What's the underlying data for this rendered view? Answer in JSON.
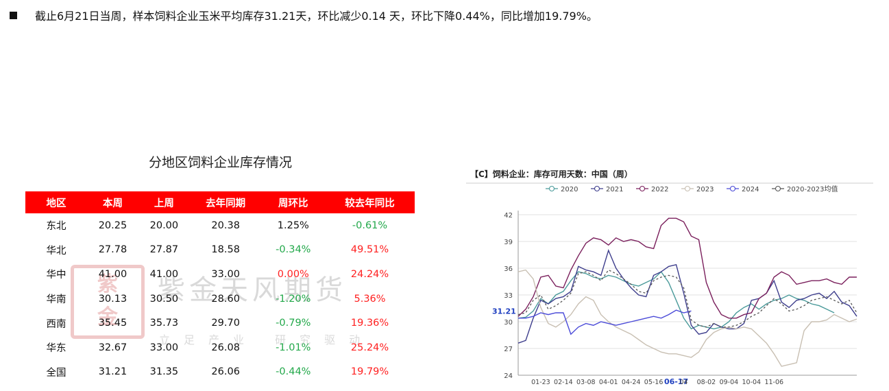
{
  "headline": "截止6月21日当周，样本饲料企业玉米平均库存31.21天，环比减少0.14 天，环比下降0.44%，同比增加19.79%。",
  "table": {
    "title": "分地区饲料企业库存情况",
    "headers": [
      "地区",
      "本周",
      "上周",
      "去年同期",
      "周环比",
      "较去年同比"
    ],
    "rows": [
      {
        "region": "东北",
        "this_week": "20.25",
        "last_week": "20.00",
        "last_year": "20.38",
        "wow": "1.25%",
        "wow_sign": "neu",
        "yoy": "-0.61%",
        "yoy_sign": "neg"
      },
      {
        "region": "华北",
        "this_week": "27.78",
        "last_week": "27.87",
        "last_year": "18.58",
        "wow": "-0.34%",
        "wow_sign": "neg",
        "yoy": "49.51%",
        "yoy_sign": "pos"
      },
      {
        "region": "华中",
        "this_week": "41.00",
        "last_week": "41.00",
        "last_year": "33.00",
        "wow": "0.00%",
        "wow_sign": "pos",
        "yoy": "24.24%",
        "yoy_sign": "pos"
      },
      {
        "region": "华南",
        "this_week": "30.13",
        "last_week": "30.50",
        "last_year": "28.60",
        "wow": "-1.20%",
        "wow_sign": "neg",
        "yoy": "5.36%",
        "yoy_sign": "pos"
      },
      {
        "region": "西南",
        "this_week": "35.45",
        "last_week": "35.73",
        "last_year": "29.70",
        "wow": "-0.79%",
        "wow_sign": "neg",
        "yoy": "19.36%",
        "yoy_sign": "pos"
      },
      {
        "region": "华东",
        "this_week": "32.67",
        "last_week": "33.00",
        "last_year": "26.08",
        "wow": "-1.01%",
        "wow_sign": "neg",
        "yoy": "25.24%",
        "yoy_sign": "pos"
      },
      {
        "region": "全国",
        "this_week": "31.21",
        "last_week": "31.35",
        "last_year": "26.06",
        "wow": "-0.44%",
        "wow_sign": "neg",
        "yoy": "19.79%",
        "yoy_sign": "pos"
      }
    ]
  },
  "watermark": {
    "seal": "紫金",
    "name": "紫金天风期货",
    "slogan": "立足产业 研究驱动"
  },
  "chart_data": {
    "type": "line",
    "title": "【C】饲料企业：库存可用天数：中国（周）",
    "ylim": [
      24,
      42
    ],
    "yticks": [
      24,
      27,
      30,
      33,
      36,
      39,
      42
    ],
    "x_tick_labels": [
      "01-23",
      "02-14",
      "03-08",
      "04-01",
      "04-24",
      "05-16",
      "06-17",
      "04",
      "08-02",
      "09-04",
      "10-04",
      "11-06"
    ],
    "x_tick_weeks": [
      3,
      6,
      9,
      12,
      15,
      18,
      21,
      22,
      25,
      28,
      31,
      34
    ],
    "highlight_tick": "06-17",
    "current_label": "31.21",
    "current_value": 31.21,
    "grid": true,
    "legend_position": "top",
    "series": [
      {
        "name": "2020",
        "color": "#4a9a9a",
        "dash": "",
        "values": [
          30.4,
          30.5,
          31.2,
          32.6,
          32.0,
          33.0,
          33.4,
          34.6,
          35.6,
          35.4,
          35.0,
          34.8,
          35.2,
          35.0,
          34.6,
          34.2,
          34.0,
          34.4,
          34.8,
          35.6,
          34.4,
          32.4,
          30.4,
          29.2,
          29.6,
          29.4,
          29.2,
          29.4,
          30.0,
          31.0,
          31.6,
          32.0,
          31.4,
          32.0,
          32.4,
          32.6,
          33.0,
          32.6,
          32.4,
          32.0,
          31.8,
          31.4,
          31.0
        ]
      },
      {
        "name": "2021",
        "color": "#3d3d8c",
        "dash": "",
        "values": [
          27.6,
          27.9,
          30.4,
          32.4,
          32.0,
          32.6,
          32.8,
          33.4,
          36.2,
          35.8,
          35.6,
          35.2,
          38.0,
          36.0,
          34.8,
          33.8,
          33.0,
          32.8,
          35.2,
          35.6,
          36.2,
          36.4,
          33.2,
          29.6,
          28.6,
          28.8,
          29.8,
          29.4,
          29.2,
          29.2,
          29.8,
          32.4,
          32.6,
          33.2,
          34.6,
          32.2,
          31.6,
          32.4,
          32.6,
          33.0,
          33.2,
          32.6,
          33.4,
          32.2,
          31.8,
          30.6
        ]
      },
      {
        "name": "2022",
        "color": "#7a1f5c",
        "dash": "",
        "values": [
          30.6,
          31.4,
          32.8,
          35.0,
          35.2,
          34.0,
          33.8,
          35.8,
          37.4,
          38.8,
          39.4,
          39.2,
          38.6,
          39.4,
          39.0,
          39.2,
          39.0,
          38.4,
          38.2,
          40.8,
          41.6,
          41.6,
          41.2,
          39.6,
          39.2,
          34.4,
          32.2,
          30.8,
          30.4,
          30.4,
          30.8,
          31.0,
          32.6,
          33.2,
          35.0,
          35.6,
          35.2,
          34.2,
          34.4,
          34.6,
          34.6,
          34.8,
          34.4,
          34.2,
          35.0,
          35.0
        ]
      },
      {
        "name": "2023",
        "color": "#c8bfb2",
        "dash": "",
        "values": [
          35.6,
          35.8,
          34.8,
          31.6,
          29.8,
          29.4,
          30.0,
          30.8,
          32.0,
          32.8,
          32.4,
          30.8,
          30.0,
          29.4,
          29.0,
          28.6,
          28.0,
          27.4,
          27.0,
          26.6,
          26.4,
          26.4,
          26.2,
          26.0,
          26.6,
          28.0,
          28.8,
          29.2,
          29.4,
          29.2,
          29.4,
          29.2,
          28.4,
          27.6,
          26.4,
          25.0,
          25.2,
          25.4,
          29.0,
          30.0,
          30.0,
          30.2,
          30.8,
          30.4,
          30.0,
          30.3
        ]
      },
      {
        "name": "2024",
        "color": "#4a4ad8",
        "dash": "",
        "values": [
          30.4,
          30.4,
          30.6,
          31.0,
          30.8,
          31.0,
          31.0,
          28.6,
          29.4,
          29.8,
          29.6,
          30.0,
          29.8,
          29.6,
          29.8,
          30.0,
          30.2,
          30.4,
          30.6,
          30.4,
          30.8,
          31.3,
          31.0,
          31.21
        ]
      },
      {
        "name": "2020-2023均值",
        "color": "#555555",
        "dash": "3,3",
        "values": [
          30.8,
          31.0,
          32.4,
          33.0,
          31.4,
          31.8,
          32.4,
          33.2,
          35.4,
          35.6,
          35.2,
          34.6,
          35.8,
          35.4,
          34.8,
          34.2,
          33.4,
          33.2,
          34.6,
          35.0,
          35.2,
          35.0,
          33.8,
          30.2,
          29.6,
          29.4,
          29.8,
          29.4,
          29.4,
          29.6,
          30.0,
          30.6,
          31.0,
          31.8,
          32.6,
          32.0,
          31.2,
          31.4,
          31.8,
          32.4,
          32.6,
          32.8,
          32.4,
          32.0,
          32.4,
          31.0
        ]
      }
    ]
  }
}
